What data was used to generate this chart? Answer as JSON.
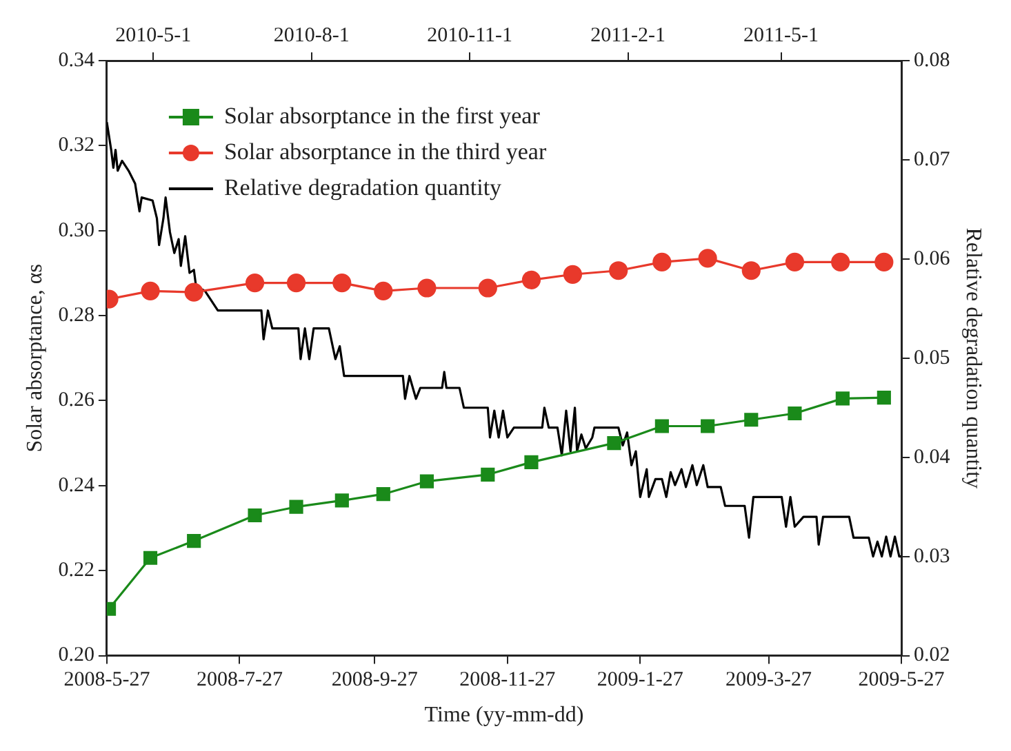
{
  "chart_data": {
    "type": "line",
    "xlabel": "Time (yy-mm-dd)",
    "ylabel": "Solar absorptance, αs",
    "y2label": "Relative degradation quantity",
    "xlim": [
      "2008-05-27",
      "2009-05-27"
    ],
    "xticks": [
      {
        "value": "2008-05-27",
        "label": "2008-5-27"
      },
      {
        "value": "2008-07-27",
        "label": "2008-7-27"
      },
      {
        "value": "2008-09-27",
        "label": "2008-9-27"
      },
      {
        "value": "2008-11-27",
        "label": "2008-11-27"
      },
      {
        "value": "2009-01-27",
        "label": "2009-1-27"
      },
      {
        "value": "2009-03-27",
        "label": "2009-3-27"
      },
      {
        "value": "2009-05-27",
        "label": "2009-5-27"
      }
    ],
    "x2lim": [
      "2010-04-04",
      "2011-07-10"
    ],
    "x2ticks": [
      {
        "value": "2010-05-01",
        "label": "2010-5-1"
      },
      {
        "value": "2010-08-01",
        "label": "2010-8-1"
      },
      {
        "value": "2010-11-01",
        "label": "2010-11-1"
      },
      {
        "value": "2011-02-01",
        "label": "2011-2-1"
      },
      {
        "value": "2011-05-01",
        "label": "2011-5-1"
      }
    ],
    "ylim": [
      0.2,
      0.34
    ],
    "yticks": [
      {
        "value": 0.2,
        "label": "0.20"
      },
      0.22,
      0.24,
      0.26,
      0.28,
      {
        "value": 0.3,
        "label": "0.30"
      },
      0.32,
      0.34
    ],
    "y2lim": [
      0.02,
      0.08
    ],
    "y2ticks": [
      0.02,
      0.03,
      0.04,
      0.05,
      0.06,
      0.07,
      0.08
    ],
    "grid": false,
    "legend": "top left",
    "series": [
      {
        "name": "Solar absorptance in the first year",
        "color": "#1a8a1a",
        "marker": "square",
        "x": [
          "2008-05-28",
          "2008-06-16",
          "2008-07-06",
          "2008-08-03",
          "2008-08-22",
          "2008-09-12",
          "2008-10-01",
          "2008-10-21",
          "2008-11-18",
          "2008-12-08",
          "2009-01-15",
          "2009-02-06",
          "2009-02-27",
          "2009-03-19",
          "2009-04-08",
          "2009-04-30",
          "2009-05-19"
        ],
        "values": [
          0.211,
          0.223,
          0.227,
          0.233,
          0.235,
          0.2365,
          0.238,
          0.241,
          0.2426,
          0.2455,
          0.25,
          0.254,
          0.254,
          0.2555,
          0.257,
          0.2605,
          0.2607
        ]
      },
      {
        "name": "Solar absorptance in the third year",
        "color": "#e8392b",
        "marker": "circle",
        "x": [
          "2008-05-28",
          "2008-06-16",
          "2008-07-06",
          "2008-08-03",
          "2008-08-22",
          "2008-09-12",
          "2008-10-01",
          "2008-10-21",
          "2008-11-18",
          "2008-12-08",
          "2008-12-27",
          "2009-01-17",
          "2009-02-06",
          "2009-02-27",
          "2009-03-19",
          "2009-04-08",
          "2009-04-29",
          "2009-05-19"
        ],
        "values": [
          0.2839,
          0.2858,
          0.2855,
          0.2877,
          0.2877,
          0.2877,
          0.2858,
          0.2865,
          0.2865,
          0.2884,
          0.2897,
          0.2906,
          0.2926,
          0.2935,
          0.2906,
          0.2926,
          0.2926,
          0.2926
        ]
      },
      {
        "name": "Relative degradation quantity",
        "color": "#000000",
        "marker": "none",
        "axis": "y2",
        "x": [
          "2008-05-27",
          "2008-05-29",
          "2008-05-30",
          "2008-05-31",
          "2008-06-01",
          "2008-06-03",
          "2008-06-06",
          "2008-06-09",
          "2008-06-11",
          "2008-06-12",
          "2008-06-17",
          "2008-06-19",
          "2008-06-20",
          "2008-06-22",
          "2008-06-23",
          "2008-06-25",
          "2008-06-27",
          "2008-06-29",
          "2008-06-30",
          "2008-07-02",
          "2008-07-04",
          "2008-07-06",
          "2008-07-07",
          "2008-07-11",
          "2008-07-17",
          "2008-08-06",
          "2008-08-07",
          "2008-08-09",
          "2008-08-11",
          "2008-08-23",
          "2008-08-24",
          "2008-08-26",
          "2008-08-28",
          "2008-08-30",
          "2008-09-06",
          "2008-09-09",
          "2008-09-11",
          "2008-09-13",
          "2008-10-10",
          "2008-10-11",
          "2008-10-13",
          "2008-10-16",
          "2008-10-18",
          "2008-10-28",
          "2008-10-29",
          "2008-10-30",
          "2008-11-05",
          "2008-11-07",
          "2008-11-18",
          "2008-11-19",
          "2008-11-21",
          "2008-11-23",
          "2008-11-25",
          "2008-11-27",
          "2008-11-30",
          "2008-12-13",
          "2008-12-14",
          "2008-12-16",
          "2008-12-20",
          "2008-12-22",
          "2008-12-24",
          "2008-12-26",
          "2008-12-28",
          "2008-12-29",
          "2008-12-31",
          "2009-01-02",
          "2009-01-05",
          "2009-01-06",
          "2009-01-17",
          "2009-01-19",
          "2009-01-21",
          "2009-01-23",
          "2009-01-25",
          "2009-01-27",
          "2009-01-30",
          "2009-01-31",
          "2009-02-03",
          "2009-02-06",
          "2009-02-08",
          "2009-02-10",
          "2009-02-12",
          "2009-02-15",
          "2009-02-17",
          "2009-02-20",
          "2009-02-22",
          "2009-02-25",
          "2009-02-27",
          "2009-03-05",
          "2009-03-07",
          "2009-03-16",
          "2009-03-18",
          "2009-03-20",
          "2009-04-02",
          "2009-04-04",
          "2009-04-06",
          "2009-04-08",
          "2009-04-12",
          "2009-04-18",
          "2009-04-19",
          "2009-04-21",
          "2009-05-03",
          "2009-05-05",
          "2009-05-12",
          "2009-05-14",
          "2009-05-16",
          "2009-05-18",
          "2009-05-20",
          "2009-05-22",
          "2009-05-24",
          "2009-05-26",
          "2009-05-27"
        ],
        "values": [
          0.0738,
          0.071,
          0.0692,
          0.071,
          0.0689,
          0.0699,
          0.0689,
          0.0676,
          0.0648,
          0.0662,
          0.0659,
          0.0641,
          0.0614,
          0.0641,
          0.0662,
          0.0627,
          0.0606,
          0.062,
          0.0593,
          0.0623,
          0.0586,
          0.0589,
          0.0572,
          0.0568,
          0.0548,
          0.0548,
          0.0519,
          0.0548,
          0.053,
          0.053,
          0.0499,
          0.053,
          0.0499,
          0.053,
          0.053,
          0.0499,
          0.0512,
          0.0482,
          0.0482,
          0.0459,
          0.0482,
          0.0459,
          0.047,
          0.047,
          0.0486,
          0.047,
          0.047,
          0.045,
          0.045,
          0.042,
          0.0447,
          0.042,
          0.0447,
          0.042,
          0.043,
          0.043,
          0.045,
          0.043,
          0.043,
          0.0402,
          0.0447,
          0.0406,
          0.045,
          0.0406,
          0.0423,
          0.0409,
          0.042,
          0.043,
          0.043,
          0.0412,
          0.0425,
          0.0392,
          0.0406,
          0.036,
          0.0388,
          0.036,
          0.0378,
          0.0378,
          0.036,
          0.0385,
          0.0372,
          0.0388,
          0.037,
          0.0392,
          0.0372,
          0.0392,
          0.037,
          0.037,
          0.0351,
          0.0351,
          0.0319,
          0.036,
          0.036,
          0.033,
          0.036,
          0.033,
          0.034,
          0.034,
          0.0312,
          0.034,
          0.034,
          0.0319,
          0.0319,
          0.03,
          0.0315,
          0.03,
          0.032,
          0.03,
          0.032,
          0.03,
          0.03
        ]
      }
    ]
  }
}
